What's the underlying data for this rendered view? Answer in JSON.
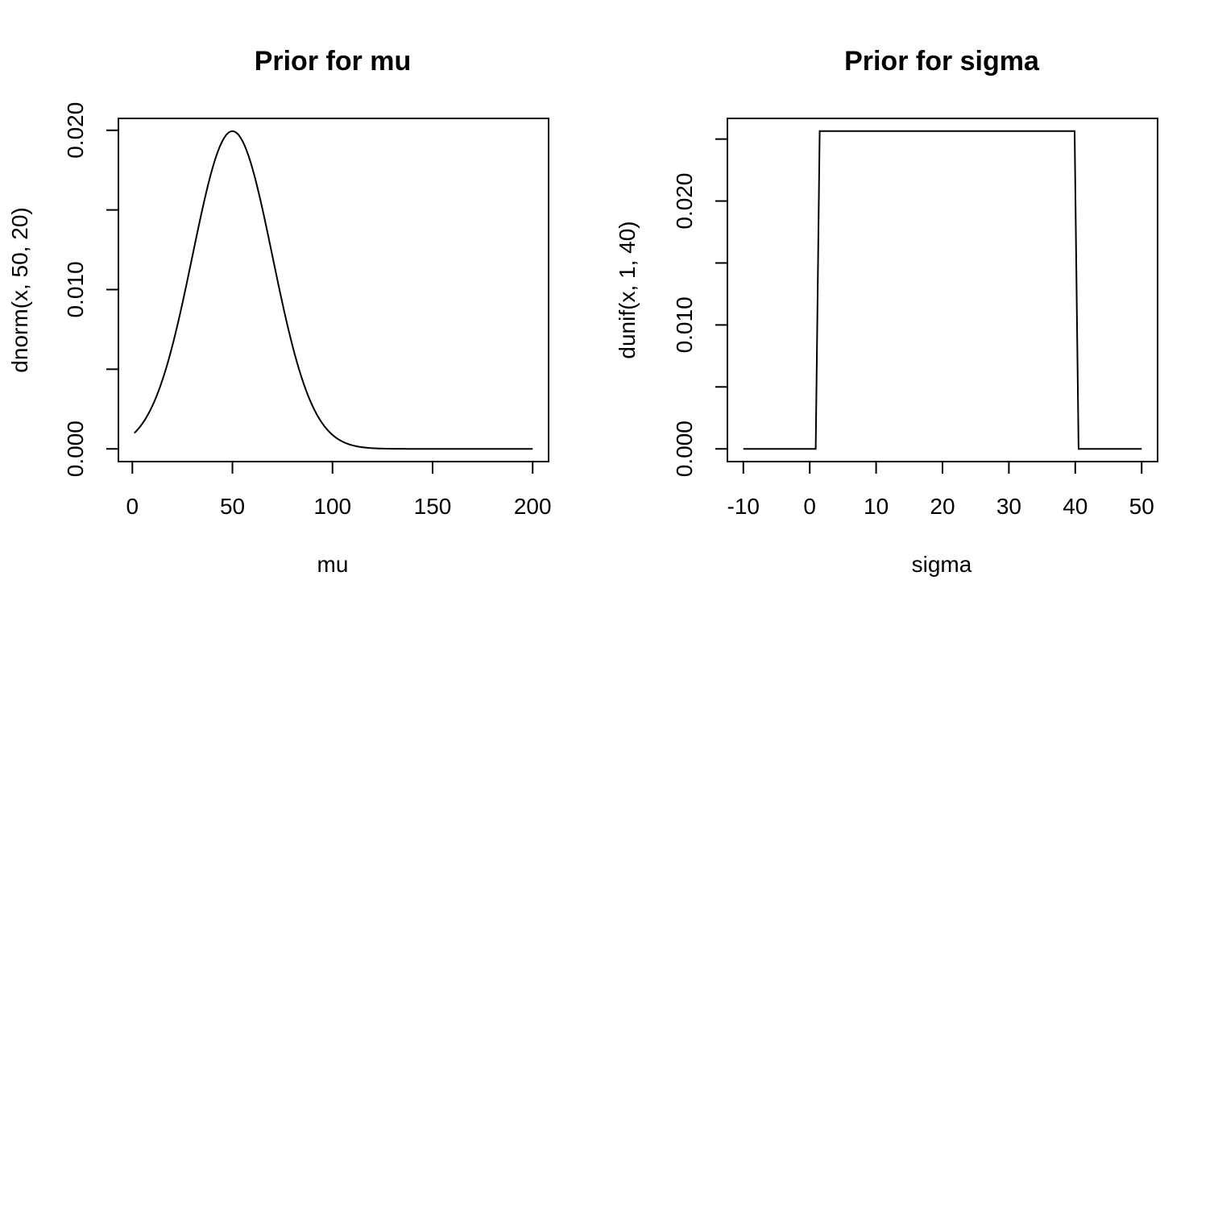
{
  "chart_data": [
    {
      "type": "line",
      "title": "Prior for mu",
      "xlabel": "mu",
      "ylabel": "dnorm(x, 50, 20)",
      "xlim": [
        -6.96,
        207.96
      ],
      "ylim": [
        -0.000798,
        0.020746
      ],
      "xticks": [
        0,
        50,
        100,
        150,
        200
      ],
      "xtick_labels": [
        "0",
        "50",
        "100",
        "150",
        "200"
      ],
      "yticks": [
        0,
        0.005,
        0.01,
        0.015,
        0.02
      ],
      "ytick_labels": [
        "0.000",
        "",
        "0.010",
        "",
        "0.020"
      ],
      "series": [
        {
          "distribution": "normal",
          "mean": 50,
          "sd": 20,
          "x_from": 1,
          "x_to": 200
        }
      ]
    },
    {
      "type": "line",
      "title": "Prior for sigma",
      "xlabel": "sigma",
      "ylabel": "dunif(x, 1, 40)",
      "xlim": [
        -12.4,
        52.4
      ],
      "ylim": [
        -0.001026,
        0.026667
      ],
      "xticks": [
        -10,
        0,
        10,
        20,
        30,
        40,
        50
      ],
      "xtick_labels": [
        "-10",
        "0",
        "10",
        "20",
        "30",
        "40",
        "50"
      ],
      "yticks": [
        0,
        0.005,
        0.01,
        0.015,
        0.02,
        0.025
      ],
      "ytick_labels": [
        "0.000",
        "",
        "0.010",
        "",
        "0.020",
        ""
      ],
      "series": [
        {
          "x": [
            -10,
            0.9,
            1.5,
            39.9,
            40.5,
            50
          ],
          "y": [
            0,
            0,
            0.025641,
            0.025641,
            0,
            0
          ]
        }
      ]
    }
  ]
}
